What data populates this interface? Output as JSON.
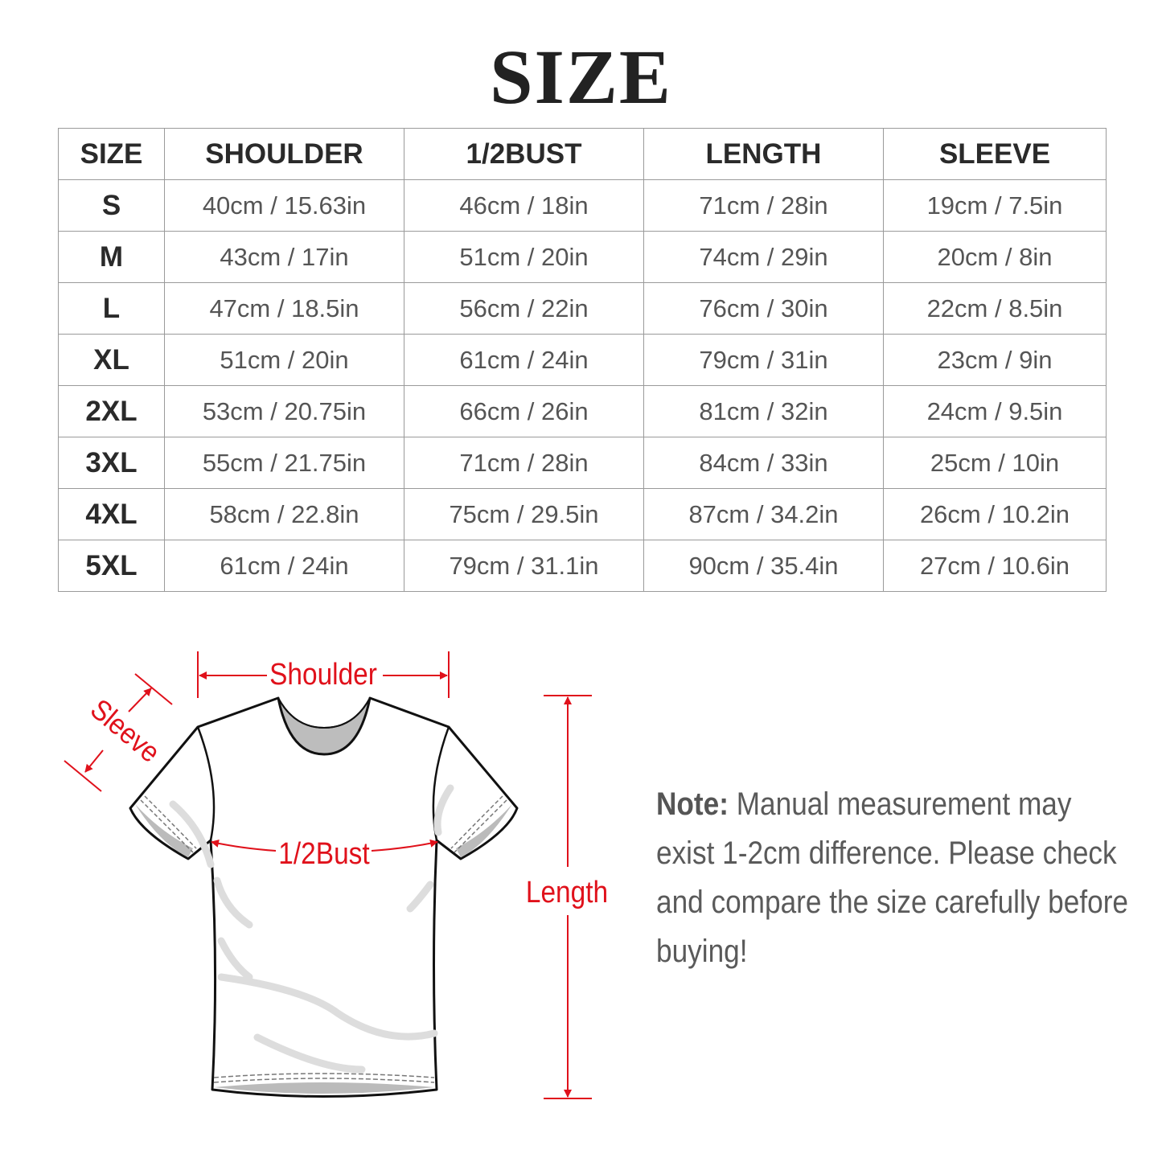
{
  "title": "SIZE",
  "table": {
    "headers": [
      "SIZE",
      "SHOULDER",
      "1/2BUST",
      "LENGTH",
      "SLEEVE"
    ],
    "rows": [
      [
        "S",
        "40cm / 15.63in",
        "46cm / 18in",
        "71cm / 28in",
        "19cm / 7.5in"
      ],
      [
        "M",
        "43cm / 17in",
        "51cm / 20in",
        "74cm / 29in",
        "20cm / 8in"
      ],
      [
        "L",
        "47cm / 18.5in",
        "56cm / 22in",
        "76cm / 30in",
        "22cm / 8.5in"
      ],
      [
        "XL",
        "51cm / 20in",
        "61cm / 24in",
        "79cm / 31in",
        "23cm / 9in"
      ],
      [
        "2XL",
        "53cm / 20.75in",
        "66cm / 26in",
        "81cm / 32in",
        "24cm / 9.5in"
      ],
      [
        "3XL",
        "55cm / 21.75in",
        "71cm / 28in",
        "84cm / 33in",
        "25cm / 10in"
      ],
      [
        "4XL",
        "58cm / 22.8in",
        "75cm / 29.5in",
        "87cm / 34.2in",
        "26cm / 10.2in"
      ],
      [
        "5XL",
        "61cm / 24in",
        "79cm / 31.1in",
        "90cm / 35.4in",
        "27cm / 10.6in"
      ]
    ]
  },
  "diagram": {
    "labels": {
      "shoulder": "Shoulder",
      "sleeve": "Sleeve",
      "bust": "1/2Bust",
      "length": "Length"
    },
    "accent_color": "#e0111b"
  },
  "note": {
    "label": "Note:",
    "text": " Manual measurement may exist 1-2cm difference. Please check and compare the size carefully before buying!"
  }
}
